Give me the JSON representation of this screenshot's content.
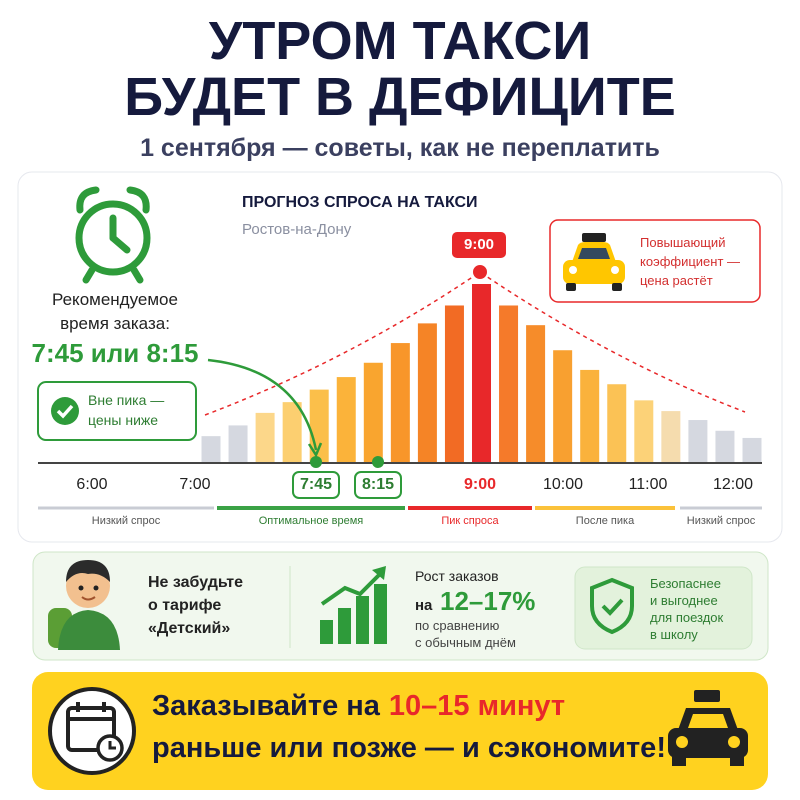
{
  "header": {
    "title_line1": "УТРОМ ТАКСИ",
    "title_line2": "БУДЕТ В ДЕФИЦИТЕ",
    "subtitle": "1 сентября — советы, как не переплатить"
  },
  "recommendation": {
    "label_line1": "Рекомендуемое",
    "label_line2": "время заказа:",
    "times": "7:45 или 8:15",
    "badge_line1": "Вне пика —",
    "badge_line2": "цены ниже"
  },
  "chart_data": {
    "type": "bar",
    "title": "ПРОГНОЗ СПРОСА НА ТАКСИ",
    "subtitle": "Ростов-на-Дону",
    "values": [
      15,
      21,
      28,
      34,
      41,
      48,
      56,
      67,
      78,
      88,
      100,
      88,
      77,
      63,
      52,
      44,
      35,
      29,
      24,
      18,
      14
    ],
    "colors": [
      "#d5d8e0",
      "#d5d8e0",
      "#fcd78a",
      "#fccf70",
      "#fbbf4a",
      "#fbb33a",
      "#f9a52f",
      "#f8962a",
      "#f58426",
      "#f26b24",
      "#e8282a",
      "#f57a2a",
      "#f68c2a",
      "#f8a030",
      "#fab23c",
      "#fbc255",
      "#fcd278",
      "#f5dcae",
      "#d5d8e0",
      "#d5d8e0",
      "#d5d8e0"
    ],
    "x_labels": [
      "6:00",
      "7:00",
      "7:45",
      "8:15",
      "9:00",
      "10:00",
      "11:00",
      "12:00"
    ],
    "peak_label": "9:00",
    "peak_note": [
      "Повышающий",
      "коэффициент —",
      "цена растёт"
    ],
    "phases": [
      "Низкий спрос",
      "Оптимальное время",
      "Пик спроса",
      "После пика",
      "Низкий спрос"
    ]
  },
  "tips": {
    "kids_line1": "Не забудьте",
    "kids_line2": "о тарифе",
    "kids_line3": "«Детский»",
    "growth_line1": "Рост заказов",
    "growth_prefix": "на",
    "growth_value": "12–17%",
    "growth_line3": "по сравнению",
    "growth_line4": "с обычным днём",
    "safe_line1": "Безопаснее",
    "safe_line2": "и выгоднее",
    "safe_line3": "для поездок",
    "safe_line4": "в школу"
  },
  "banner": {
    "line1_start": "Заказывайте на",
    "line1_highlight": "10–15 минут",
    "line2": "раньше или позже — и сэкономите!"
  }
}
